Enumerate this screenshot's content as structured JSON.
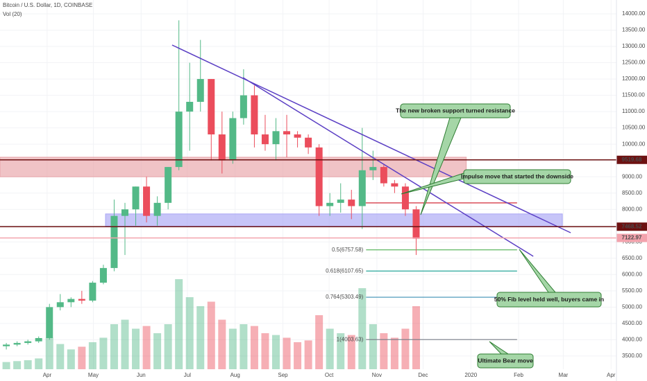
{
  "chart_data": {
    "type": "candlestick",
    "title": "Bitcoin / U.S. Dollar, 1D, COINBASE",
    "subtitle": "Vol (20)",
    "up_color": "#53b987",
    "down_color": "#eb4d5c",
    "x": [
      60,
      67,
      74,
      81,
      88,
      95,
      102,
      109,
      116,
      123,
      130,
      137,
      144,
      151,
      158,
      165,
      172,
      179,
      186,
      193,
      200,
      207,
      214,
      221,
      228,
      235,
      242,
      249,
      256,
      263,
      270,
      277,
      284,
      291,
      298,
      305,
      312,
      319,
      326
    ],
    "open": [
      3800,
      3850,
      3900,
      3950,
      4050,
      5000,
      5150,
      5250,
      5200,
      5750,
      6200,
      7800,
      8000,
      8700,
      7800,
      8200,
      9300,
      11000,
      11300,
      12000,
      10300,
      9500,
      10800,
      11500,
      10300,
      10000,
      10400,
      10300,
      10200,
      9900,
      8100,
      8200,
      8300,
      8100,
      9200,
      9300,
      8800,
      8700,
      8000
    ],
    "high": [
      3900,
      3950,
      4000,
      4100,
      5100,
      5400,
      5300,
      5500,
      5800,
      6300,
      8300,
      8200,
      8700,
      9000,
      8400,
      9300,
      13800,
      12500,
      13200,
      12000,
      11000,
      11000,
      12300,
      11800,
      10900,
      10800,
      10900,
      10400,
      10300,
      10000,
      8500,
      8800,
      8600,
      10500,
      9800,
      9400,
      8900,
      8800,
      8100
    ],
    "low": [
      3700,
      3800,
      3850,
      3900,
      4000,
      4900,
      5000,
      5100,
      5150,
      5700,
      6100,
      6600,
      7500,
      7600,
      7500,
      8000,
      9200,
      9800,
      11000,
      9500,
      9100,
      9400,
      10600,
      9900,
      9800,
      9500,
      9600,
      9900,
      9700,
      7800,
      7800,
      7900,
      7700,
      7400,
      8900,
      8700,
      8500,
      7800,
      6600
    ],
    "close": [
      3850,
      3900,
      3950,
      4050,
      5000,
      5150,
      5250,
      5200,
      5750,
      6200,
      7800,
      8000,
      8700,
      7800,
      8200,
      9300,
      11000,
      11300,
      12000,
      10300,
      9500,
      10800,
      11500,
      10300,
      10000,
      10400,
      10300,
      10200,
      9900,
      8100,
      8200,
      8300,
      8100,
      9200,
      9300,
      8800,
      8700,
      8000,
      7100
    ],
    "volume": [
      8,
      9,
      10,
      12,
      35,
      28,
      22,
      25,
      30,
      35,
      50,
      55,
      45,
      48,
      40,
      50,
      100,
      80,
      70,
      75,
      55,
      45,
      50,
      48,
      40,
      38,
      35,
      30,
      32,
      60,
      45,
      40,
      38,
      90,
      50,
      40,
      35,
      45,
      70
    ],
    "xlim": [
      59.4,
      459.5
    ],
    "ylim": [
      3094,
      14425
    ],
    "xticks": [
      {
        "value": 90,
        "label": "Apr"
      },
      {
        "value": 120,
        "label": "May"
      },
      {
        "value": 151,
        "label": "Jun"
      },
      {
        "value": 181,
        "label": "Jul"
      },
      {
        "value": 212,
        "label": "Aug"
      },
      {
        "value": 243,
        "label": "Sep"
      },
      {
        "value": 273,
        "label": "Oct"
      },
      {
        "value": 304,
        "label": "Nov"
      },
      {
        "value": 334,
        "label": "Dec"
      },
      {
        "value": 365,
        "label": "2020"
      },
      {
        "value": 396,
        "label": "Feb"
      },
      {
        "value": 425,
        "label": "Mar"
      },
      {
        "value": 456,
        "label": "Apr"
      }
    ],
    "yticks": [
      {
        "value": 3500,
        "label": "3500.00"
      },
      {
        "value": 4000,
        "label": "4000.00"
      },
      {
        "value": 4500,
        "label": "4500.00"
      },
      {
        "value": 5000,
        "label": "5000.00"
      },
      {
        "value": 5500,
        "label": "5500.00"
      },
      {
        "value": 6000,
        "label": "6000.00"
      },
      {
        "value": 6500,
        "label": "6500.00"
      },
      {
        "value": 7000,
        "label": "7000.00"
      },
      {
        "value": 7500,
        "label": "7500.00"
      },
      {
        "value": 8000,
        "label": "8000.00"
      },
      {
        "value": 8500,
        "label": "8500.00"
      },
      {
        "value": 9000,
        "label": "9000.00"
      },
      {
        "value": 9500,
        "label": "9500.00"
      },
      {
        "value": 10000,
        "label": "10000.00"
      },
      {
        "value": 10500,
        "label": "10500.00"
      },
      {
        "value": 11000,
        "label": "11000.00"
      },
      {
        "value": 11500,
        "label": "11500.00"
      },
      {
        "value": 12000,
        "label": "12000.00"
      },
      {
        "value": 12500,
        "label": "12500.00"
      },
      {
        "value": 13000,
        "label": "13000.00"
      },
      {
        "value": 13500,
        "label": "13500.00"
      },
      {
        "value": 14000,
        "label": "14000.00"
      }
    ],
    "zones": [
      {
        "from": 9000,
        "to": 9600,
        "x": [
          59.4,
          362
        ],
        "color": "#e8a3a8"
      },
      {
        "from": 7480,
        "to": 7860,
        "x": [
          127.9,
          424.4
        ],
        "color": "#a9a6f5"
      }
    ],
    "price_lines": [
      {
        "value": 9519.68,
        "color": "#6d1111"
      },
      {
        "value": 7468.52,
        "color": "#6d1111"
      },
      {
        "value": 7122.97,
        "color": "#f3a3ad"
      }
    ],
    "levels": [
      {
        "value": 8200,
        "x": [
          296.8,
          395
        ],
        "color": "#d94c58"
      }
    ],
    "fib_levels": [
      {
        "label": "0.5(6757.58)",
        "value": 6757.58,
        "color": "#4caf50"
      },
      {
        "label": "0.618(6107.65)",
        "value": 6107.65,
        "color": "#26a69a"
      },
      {
        "label": "0.764(5303.49)",
        "value": 5303.49,
        "color": "#3b8fb5"
      },
      {
        "label": "1(4003.63)",
        "value": 4003.63,
        "color": "#787b86"
      }
    ],
    "fib_x": [
      297,
      395
    ],
    "trendlines": [
      {
        "x": [
          171.1,
          429.8
        ],
        "y": [
          13043,
          7282
        ]
      },
      {
        "x": [
          217.1,
          405.5
        ],
        "y": [
          12044,
          6560
        ]
      }
    ],
    "annotations": [
      "The new broken support turned resistance",
      "Impulse move that started the downside",
      "50% Fib level held well, buyers came in",
      "Ultimate Bear move"
    ]
  }
}
